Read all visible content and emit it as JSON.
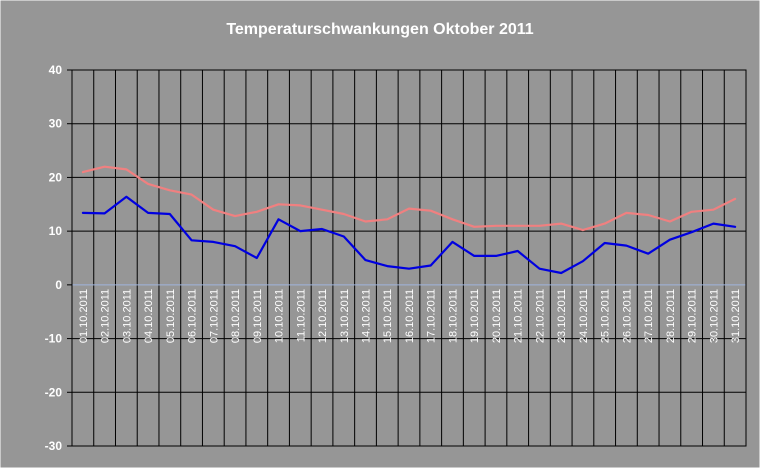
{
  "chart_data": {
    "type": "line",
    "title": "Temperaturschwankungen Oktober 2011",
    "xlabel": "",
    "ylabel": "",
    "ylim": [
      -30,
      40
    ],
    "yticks": [
      40,
      30,
      20,
      10,
      0,
      -10,
      -20,
      -30
    ],
    "grid": true,
    "legend": "none",
    "categories": [
      "01.10.2011",
      "02.10.2011",
      "03.10.2011",
      "04.10.2011",
      "05.10.2011",
      "06.10.2011",
      "07.10.2011",
      "08.10.2011",
      "09.10.2011",
      "10.10.2011",
      "11.10.2011",
      "12.10.2011",
      "13.10.2011",
      "14.10.2011",
      "15.10.2011",
      "16.10.2011",
      "17.10.2011",
      "18.10.2011",
      "19.10.2011",
      "20.10.2011",
      "21.10.2011",
      "22.10.2011",
      "23.10.2011",
      "24.10.2011",
      "25.10.2011",
      "26.10.2011",
      "27.10.2011",
      "28.10.2011",
      "29.10.2011",
      "30.10.2011",
      "31.10.2011"
    ],
    "series": [
      {
        "color": "#f08080",
        "values": [
          21.0,
          22.0,
          21.5,
          18.8,
          17.6,
          16.8,
          14.0,
          12.8,
          13.6,
          15.0,
          14.8,
          14.0,
          13.2,
          11.8,
          12.2,
          14.2,
          13.8,
          12.2,
          10.8,
          11.0,
          11.0,
          11.0,
          11.4,
          10.2,
          11.4,
          13.4,
          13.0,
          11.8,
          13.6,
          14.0,
          16.0
        ]
      },
      {
        "color": "#0000e0",
        "values": [
          13.4,
          13.3,
          16.4,
          13.4,
          13.2,
          8.3,
          8.0,
          7.2,
          5.0,
          12.2,
          10.0,
          10.4,
          9.0,
          4.6,
          3.5,
          3.0,
          3.6,
          8.0,
          5.4,
          5.4,
          6.3,
          3.0,
          2.2,
          4.4,
          7.8,
          7.3,
          5.8,
          8.4,
          9.8,
          11.4,
          10.8
        ]
      }
    ]
  },
  "colors": {
    "page_background": "#969696",
    "plot_background": "#969696",
    "grid": "#000000",
    "zero_line": "#a0b4dc",
    "text": "#ffffff"
  }
}
